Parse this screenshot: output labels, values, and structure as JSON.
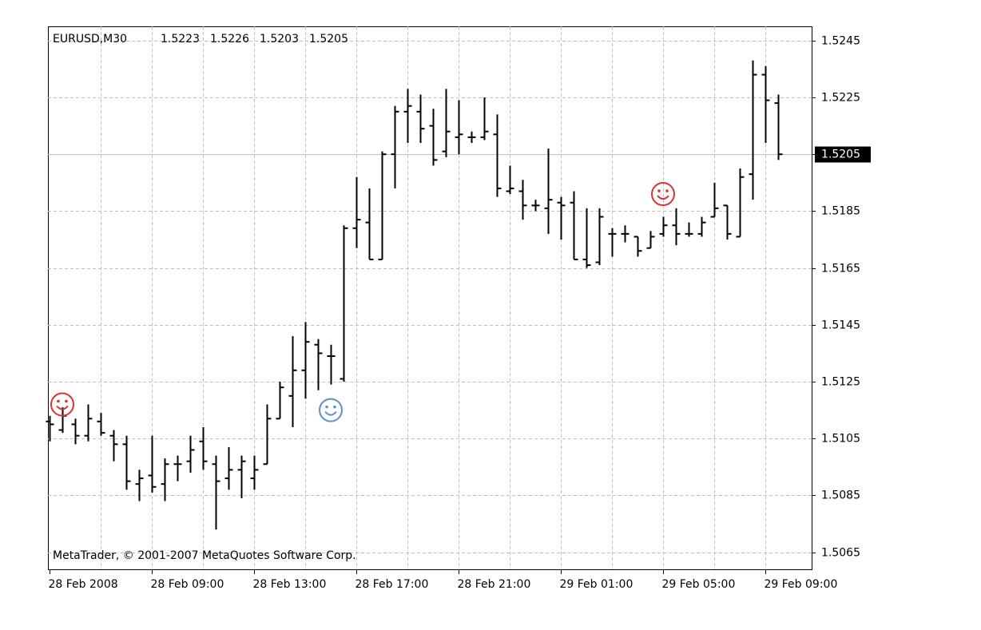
{
  "chart_data": {
    "type": "ohlc",
    "title": "EURUSD,M30",
    "footer": "MetaTrader, © 2001-2007 MetaQuotes Software Corp.",
    "categories": [
      "28 Feb 2008",
      null,
      null,
      null,
      null,
      null,
      null,
      null,
      "28 Feb 09:00",
      null,
      null,
      null,
      null,
      null,
      null,
      null,
      "28 Feb 13:00",
      null,
      null,
      null,
      null,
      null,
      null,
      null,
      "28 Feb 17:00",
      null,
      null,
      null,
      null,
      null,
      null,
      null,
      "28 Feb 21:00",
      null,
      null,
      null,
      null,
      null,
      null,
      null,
      "29 Feb 01:00",
      null,
      null,
      null,
      null,
      null,
      null,
      null,
      "29 Feb 05:00",
      null,
      null,
      null,
      null,
      null,
      null,
      null,
      "29 Feb 09:00",
      null
    ],
    "open": [
      1.5111,
      1.5108,
      1.511,
      1.5106,
      1.5111,
      1.5106,
      1.5103,
      1.5089,
      1.5092,
      1.5089,
      1.5096,
      1.5097,
      1.5104,
      1.5096,
      1.5091,
      1.5094,
      1.5091,
      1.5096,
      1.5112,
      1.512,
      1.5129,
      1.5138,
      1.5134,
      1.5126,
      1.5179,
      1.5181,
      1.5168,
      1.5205,
      1.522,
      1.522,
      1.5215,
      1.5206,
      1.5211,
      1.5211,
      1.5211,
      1.5212,
      1.5192,
      1.5192,
      1.5187,
      1.5186,
      1.5188,
      1.5188,
      1.5168,
      1.5167,
      1.5177,
      1.5177,
      1.5176,
      1.5172,
      1.5177,
      1.518,
      1.5177,
      1.5177,
      1.5183,
      1.5187,
      1.5176,
      1.5198,
      1.5233,
      1.5223
    ],
    "high": [
      1.5113,
      1.5116,
      1.5112,
      1.5117,
      1.5114,
      1.5108,
      1.5106,
      1.5094,
      1.5106,
      1.5098,
      1.5099,
      1.5106,
      1.5109,
      1.5099,
      1.5102,
      1.5099,
      1.5099,
      1.5117,
      1.5125,
      1.5141,
      1.5146,
      1.514,
      1.5138,
      1.518,
      1.5197,
      1.5193,
      1.5206,
      1.5222,
      1.5228,
      1.5226,
      1.5221,
      1.5228,
      1.5224,
      1.5213,
      1.5225,
      1.5219,
      1.5201,
      1.5196,
      1.5189,
      1.5207,
      1.519,
      1.5192,
      1.5186,
      1.5186,
      1.5179,
      1.518,
      1.5176,
      1.5178,
      1.5183,
      1.5186,
      1.5181,
      1.5183,
      1.5195,
      1.5187,
      1.52,
      1.5238,
      1.5236,
      1.5226
    ],
    "low": [
      1.5104,
      1.5107,
      1.5103,
      1.5104,
      1.5106,
      1.5097,
      1.5087,
      1.5083,
      1.5086,
      1.5083,
      1.509,
      1.5093,
      1.5094,
      1.5073,
      1.5087,
      1.5084,
      1.5087,
      1.5096,
      1.5112,
      1.5109,
      1.5119,
      1.5122,
      1.5124,
      1.5125,
      1.5172,
      1.5168,
      1.5168,
      1.5193,
      1.5209,
      1.5209,
      1.5201,
      1.5204,
      1.5205,
      1.5209,
      1.521,
      1.519,
      1.5191,
      1.5182,
      1.5185,
      1.5177,
      1.5175,
      1.5168,
      1.5165,
      1.5166,
      1.5169,
      1.5174,
      1.5169,
      1.5172,
      1.5176,
      1.5173,
      1.5176,
      1.5176,
      1.5183,
      1.5175,
      1.5176,
      1.5189,
      1.5209,
      1.5203
    ],
    "close": [
      1.511,
      1.5113,
      1.5106,
      1.5112,
      1.5107,
      1.5103,
      1.509,
      1.5091,
      1.5088,
      1.5096,
      1.5096,
      1.5101,
      1.5097,
      1.509,
      1.5094,
      1.5097,
      1.5094,
      1.5112,
      1.5123,
      1.5129,
      1.5139,
      1.5135,
      1.5134,
      1.5179,
      1.5182,
      1.5168,
      1.5205,
      1.522,
      1.5222,
      1.5214,
      1.5203,
      1.5213,
      1.5212,
      1.5211,
      1.5213,
      1.5193,
      1.5193,
      1.5187,
      1.5187,
      1.5189,
      1.5187,
      1.5168,
      1.5166,
      1.5183,
      1.5177,
      1.5177,
      1.5171,
      1.5176,
      1.518,
      1.5177,
      1.5177,
      1.5181,
      1.5186,
      1.5177,
      1.5197,
      1.5233,
      1.5224,
      1.5205
    ],
    "color": "#000000",
    "signals": [
      {
        "index": 1,
        "price": 1.5117,
        "color": "#e03030"
      },
      {
        "index": 22,
        "price": 1.5115,
        "color": "#5b8fd0"
      },
      {
        "index": 48,
        "price": 1.5191,
        "color": "#e03030"
      }
    ],
    "ylim": [
      1.5059,
      1.525
    ],
    "yticks": [
      1.5245,
      1.5225,
      1.5205,
      1.5185,
      1.5165,
      1.5145,
      1.5125,
      1.5105,
      1.5085,
      1.5065
    ],
    "grid": true
  }
}
